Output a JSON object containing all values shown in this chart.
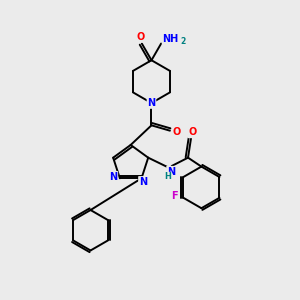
{
  "bg_color": "#ebebeb",
  "atom_colors": {
    "N": "#0000ff",
    "O": "#ff0000",
    "F": "#cc00cc",
    "C": "#000000",
    "H": "#008080"
  },
  "bond_color": "#000000",
  "bond_lw": 1.4
}
